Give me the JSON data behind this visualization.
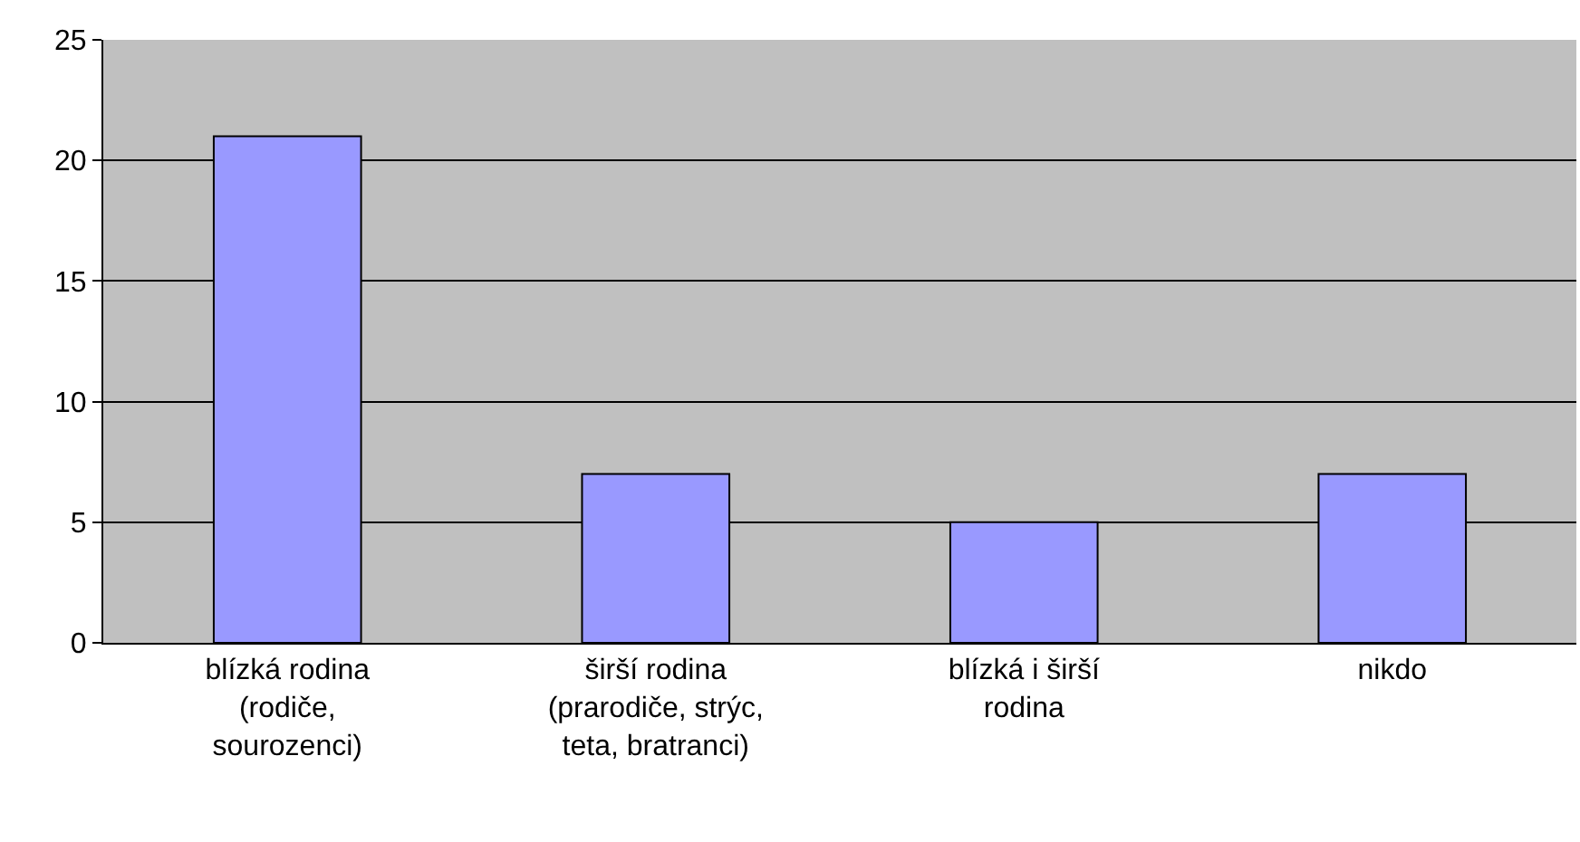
{
  "chart_data": {
    "type": "bar",
    "categories": [
      "blízká rodina (rodiče, sourozenci)",
      "širší rodina (prarodiče, strýc, teta, bratranci)",
      "blízká i širší rodina",
      "nikdo"
    ],
    "values": [
      21,
      7,
      5,
      7
    ],
    "color": "#9999ff",
    "ylim": [
      0,
      25
    ],
    "yticks": [
      0,
      5,
      10,
      15,
      20,
      25
    ],
    "grid": "y"
  }
}
